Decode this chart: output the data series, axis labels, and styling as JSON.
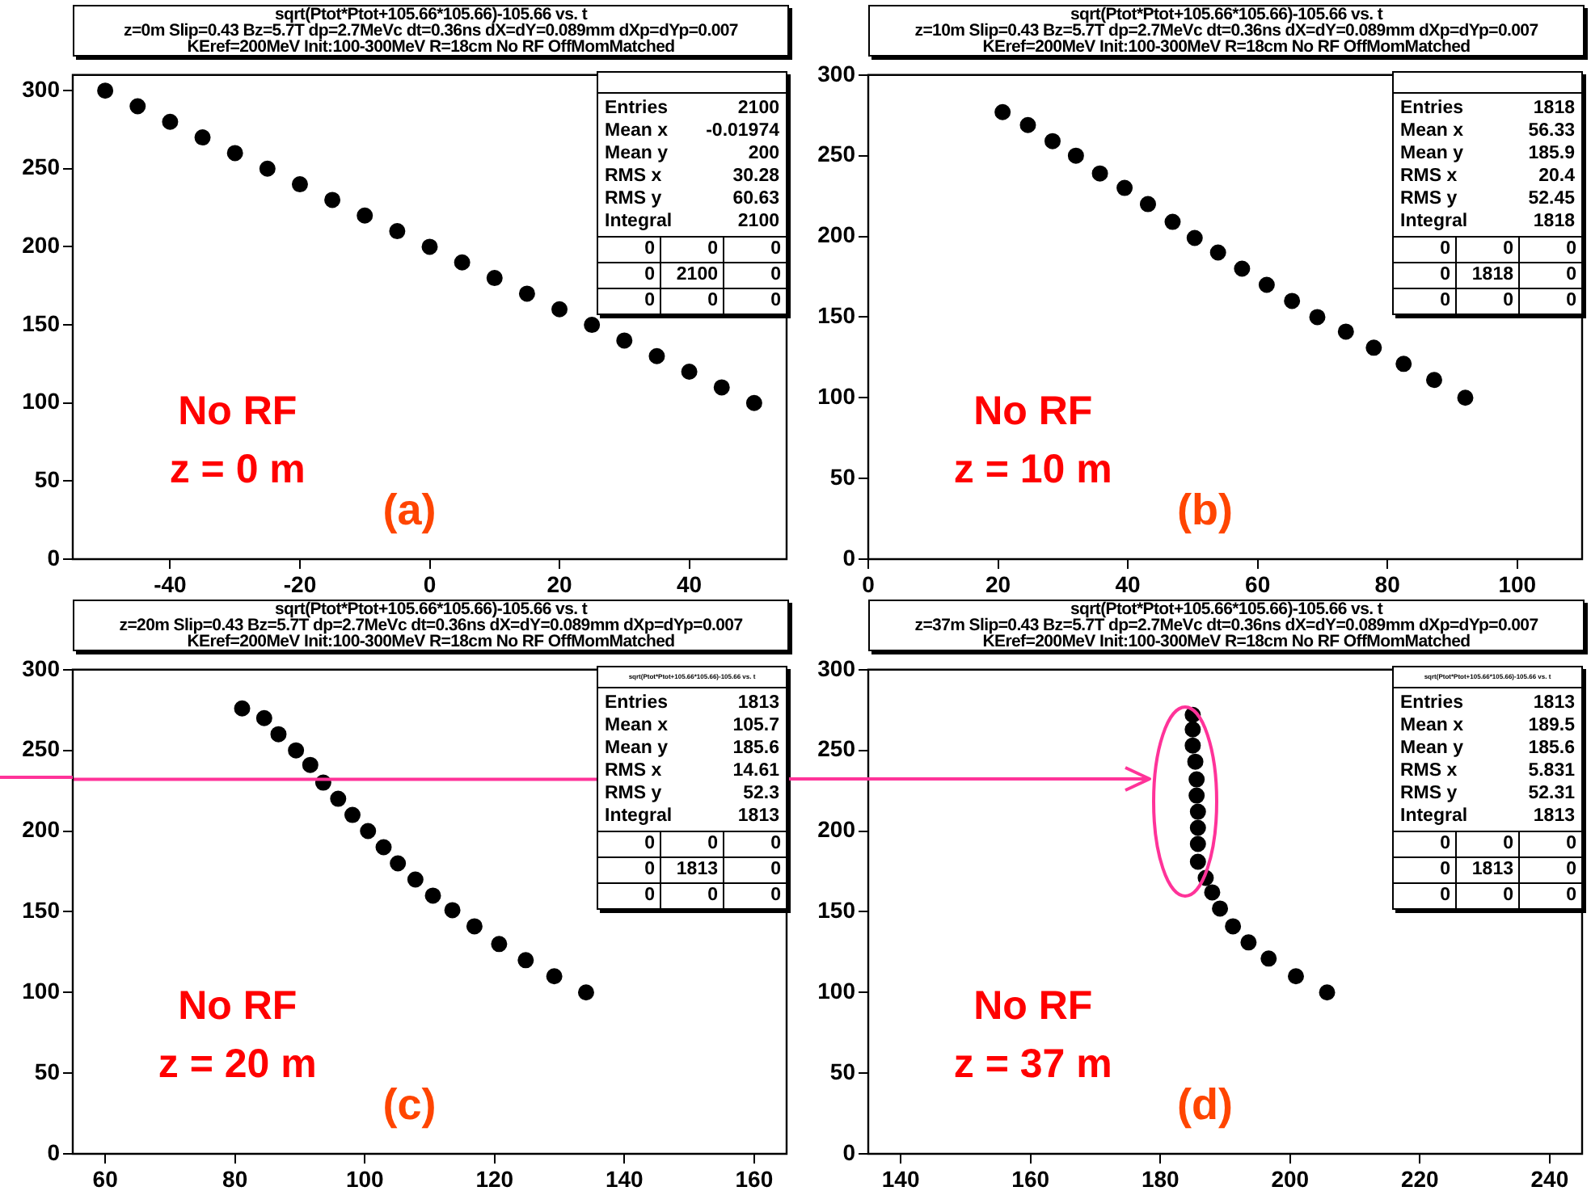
{
  "chart_data": [
    {
      "type": "scatter",
      "title": "sqrt(Ptot*Ptot+105.66*105.66)-105.66 vs. t",
      "subtitle": "z=0m Slip=0.43 Bz=5.7T dp=2.7MeVc dt=0.36ns dX=dY=0.089mm dXp=dYp=0.007\nKEref=200MeV Init:100-300MeV R=18cm No RF OffMomMatched",
      "x": [
        -50,
        -45,
        -40,
        -35,
        -30,
        -25,
        -20,
        -15,
        -10,
        -5,
        0,
        5,
        10,
        15,
        20,
        25,
        30,
        35,
        40,
        45,
        50
      ],
      "series": [
        {
          "color": "#000000",
          "values": [
            300,
            290,
            280,
            270,
            260,
            250,
            240,
            230,
            220,
            210,
            200,
            190,
            180,
            170,
            160,
            150,
            140,
            130,
            120,
            110,
            100
          ]
        }
      ],
      "xlim": [
        -55,
        55
      ],
      "xticks": [
        -40,
        -20,
        0,
        20,
        40
      ],
      "ylim": [
        0,
        310
      ],
      "yticks": [
        0,
        50,
        100,
        150,
        200,
        250,
        300
      ],
      "grid": false,
      "legend": false,
      "marker": "circle",
      "annotations": [
        "No RF",
        "z = 0 m",
        "(a)",
        "Entries 2100",
        "Mean x -0.01974",
        "Mean y 200",
        "RMS x 30.28",
        "RMS y 60.63",
        "Integral 2100",
        "0 0 0",
        "0 2100 0",
        "0 0 0"
      ]
    },
    {
      "type": "scatter",
      "title": "sqrt(Ptot*Ptot+105.66*105.66)-105.66 vs. t",
      "subtitle": "z=10m Slip=0.43 Bz=5.7T dp=2.7MeVc dt=0.36ns dX=dY=0.089mm dXp=dYp=0.007\nKEref=200MeV Init:100-300MeV R=18cm No RF OffMomMatched",
      "x": [
        20.7,
        24.6,
        28.4,
        32,
        35.7,
        39.5,
        43.1,
        46.9,
        50.3,
        53.9,
        57.6,
        61.4,
        65.3,
        69.2,
        73.6,
        77.9,
        82.5,
        87.2,
        92
      ],
      "series": [
        {
          "color": "#000000",
          "values": [
            277,
            269,
            259,
            250,
            239,
            230,
            220,
            209,
            199,
            190,
            180,
            170,
            160,
            150,
            141,
            131,
            121,
            111,
            100
          ]
        }
      ],
      "xlim": [
        0,
        110
      ],
      "xticks": [
        0,
        20,
        40,
        60,
        80,
        100
      ],
      "ylim": [
        0,
        300
      ],
      "yticks": [
        0,
        50,
        100,
        150,
        200,
        250,
        300
      ],
      "grid": false,
      "legend": false,
      "marker": "circle",
      "annotations": [
        "No RF",
        "z = 10 m",
        "(b)",
        "Entries 1818",
        "Mean x 56.33",
        "Mean y 185.9",
        "RMS x 20.4",
        "RMS y 52.45",
        "Integral 1818",
        "0 0 0",
        "0 1818 0",
        "0 0 0"
      ]
    },
    {
      "type": "scatter",
      "title": "sqrt(Ptot*Ptot+105.66*105.66)-105.66 vs. t",
      "subtitle": "z=20m Slip=0.43 Bz=5.7T dp=2.7MeVc dt=0.36ns dX=dY=0.089mm dXp=dYp=0.007\nKEref=200MeV Init:100-300MeV R=18cm No RF OffMomMatched",
      "x": [
        81.1,
        84.5,
        86.7,
        89.4,
        91.6,
        93.6,
        95.9,
        98.1,
        100.5,
        102.9,
        105.1,
        107.8,
        110.5,
        113.5,
        116.9,
        120.7,
        124.8,
        129.2,
        134.1
      ],
      "series": [
        {
          "color": "#000000",
          "values": [
            276,
            270,
            260,
            250,
            241,
            230,
            220,
            210,
            200,
            190,
            180,
            170,
            160,
            151,
            141,
            130,
            120,
            110,
            100
          ]
        }
      ],
      "xlim": [
        55,
        165
      ],
      "xticks": [
        60,
        80,
        100,
        120,
        140,
        160
      ],
      "ylim": [
        0,
        300
      ],
      "yticks": [
        0,
        50,
        100,
        150,
        200,
        250,
        300
      ],
      "grid": false,
      "legend": false,
      "marker": "circle",
      "ref_lines": [
        {
          "axis": "y",
          "value": 232,
          "color": "#ff3399"
        }
      ],
      "annotations": [
        "No RF",
        "z = 20 m",
        "(c)",
        "sqrt(Ptot*Ptot+105.66*105.66)-105.66 vs. t",
        "Entries 1813",
        "Mean x 105.7",
        "Mean y 185.6",
        "RMS x 14.61",
        "RMS y 52.3",
        "Integral 1813",
        "0 0 0",
        "0 1813 0",
        "0 0 0"
      ]
    },
    {
      "type": "scatter",
      "title": "sqrt(Ptot*Ptot+105.66*105.66)-105.66 vs. t",
      "subtitle": "z=37m Slip=0.43 Bz=5.7T dp=2.7MeVc dt=0.36ns dX=dY=0.089mm dXp=dYp=0.007\nKEref=200MeV Init:100-300MeV R=18cm No RF OffMomMatched",
      "x": [
        185,
        185,
        185,
        185.4,
        185.6,
        185.6,
        185.8,
        185.8,
        185.8,
        185.8,
        187,
        188,
        189.2,
        191.2,
        193.6,
        196.7,
        200.9,
        205.7
      ],
      "series": [
        {
          "color": "#000000",
          "values": [
            272,
            263,
            253,
            243,
            232,
            222,
            212,
            202,
            192,
            181,
            171,
            162,
            152,
            141,
            131,
            121,
            110,
            100
          ]
        }
      ],
      "xlim": [
        135,
        245
      ],
      "xticks": [
        140,
        160,
        180,
        200,
        220,
        240
      ],
      "ylim": [
        0,
        300
      ],
      "yticks": [
        0,
        50,
        100,
        150,
        200,
        250,
        300
      ],
      "grid": false,
      "legend": false,
      "marker": "circle",
      "annotations": [
        "No RF",
        "z = 37 m",
        "(d)",
        "sqrt(Ptot*Ptot+105.66*105.66)-105.66 vs. t",
        "Entries 1813",
        "Mean x 189.5",
        "Mean y 185.6",
        "RMS x 5.831",
        "RMS y 52.31",
        "Integral 1813",
        "0 0 0",
        "0 1813 0",
        "0 0 0"
      ]
    }
  ]
}
